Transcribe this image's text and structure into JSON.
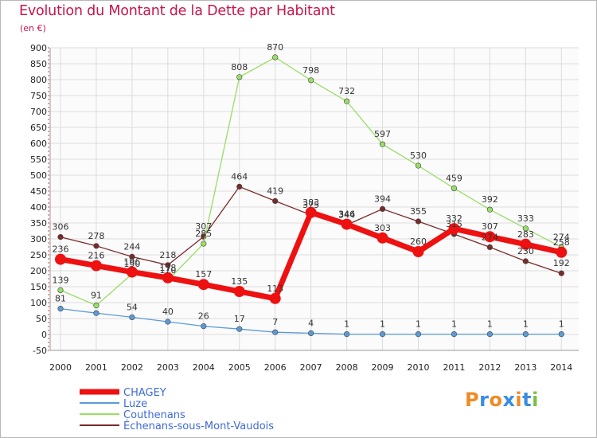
{
  "chart_data": {
    "type": "line",
    "title": "Evolution du Montant de la Dette par Habitant",
    "subtitle": "(en €)",
    "x": [
      "2000",
      "2001",
      "2002",
      "2003",
      "2004",
      "2005",
      "2006",
      "2007",
      "2008",
      "2009",
      "2010",
      "2011",
      "2012",
      "2013",
      "2014"
    ],
    "ylim": [
      -50,
      900
    ],
    "yticks": [
      -50,
      0,
      50,
      100,
      150,
      200,
      250,
      300,
      350,
      400,
      450,
      500,
      550,
      600,
      650,
      700,
      750,
      800,
      850,
      900
    ],
    "grid": true,
    "legend_position": "bottom-left",
    "series": [
      {
        "name": "CHAGEY",
        "color": "#ee1111",
        "emphasis": true,
        "values": [
          236,
          216,
          196,
          178,
          157,
          135,
          113,
          383,
          346,
          303,
          260,
          332,
          307,
          283,
          258
        ],
        "labels": [
          "236",
          "216",
          "196",
          "178",
          "157",
          "135",
          "113",
          "383",
          "346",
          "303",
          "260",
          "332",
          "307",
          "283",
          "258"
        ]
      },
      {
        "name": "Luze",
        "color": "#5b9bd5",
        "emphasis": false,
        "values": [
          81,
          67,
          54,
          40,
          26,
          17,
          7,
          4,
          1,
          1,
          1,
          1,
          1,
          1,
          1
        ],
        "labels": [
          "81",
          "",
          "54",
          "40",
          "26",
          "17",
          "7",
          "4",
          "1",
          "1",
          "1",
          "1",
          "1",
          "1",
          "1"
        ]
      },
      {
        "name": "Couthenans",
        "color": "#99dd66",
        "emphasis": false,
        "values": [
          139,
          91,
          190,
          170,
          285,
          808,
          870,
          798,
          732,
          597,
          530,
          459,
          392,
          333,
          274
        ],
        "labels": [
          "139",
          "91",
          "190",
          "170",
          "285",
          "808",
          "870",
          "798",
          "732",
          "597",
          "530",
          "459",
          "392",
          "333",
          "274"
        ]
      },
      {
        "name": "Échenans-sous-Mont-Vaudois",
        "color": "#7a2a2a",
        "emphasis": false,
        "values": [
          306,
          278,
          244,
          218,
          307,
          464,
          419,
          375,
          344,
          394,
          355,
          315,
          274,
          230,
          192
        ],
        "labels": [
          "306",
          "278",
          "244",
          "218",
          "307",
          "464",
          "419",
          "375",
          "344",
          "394",
          "355",
          "315",
          "274",
          "230",
          "192"
        ]
      }
    ]
  },
  "logo": {
    "text": "Proxiti",
    "colors": [
      "#f08a24",
      "#3a8de0",
      "#f08a24",
      "#3a8de0",
      "#f08a24",
      "#3a8de0",
      "#7ac143"
    ]
  }
}
